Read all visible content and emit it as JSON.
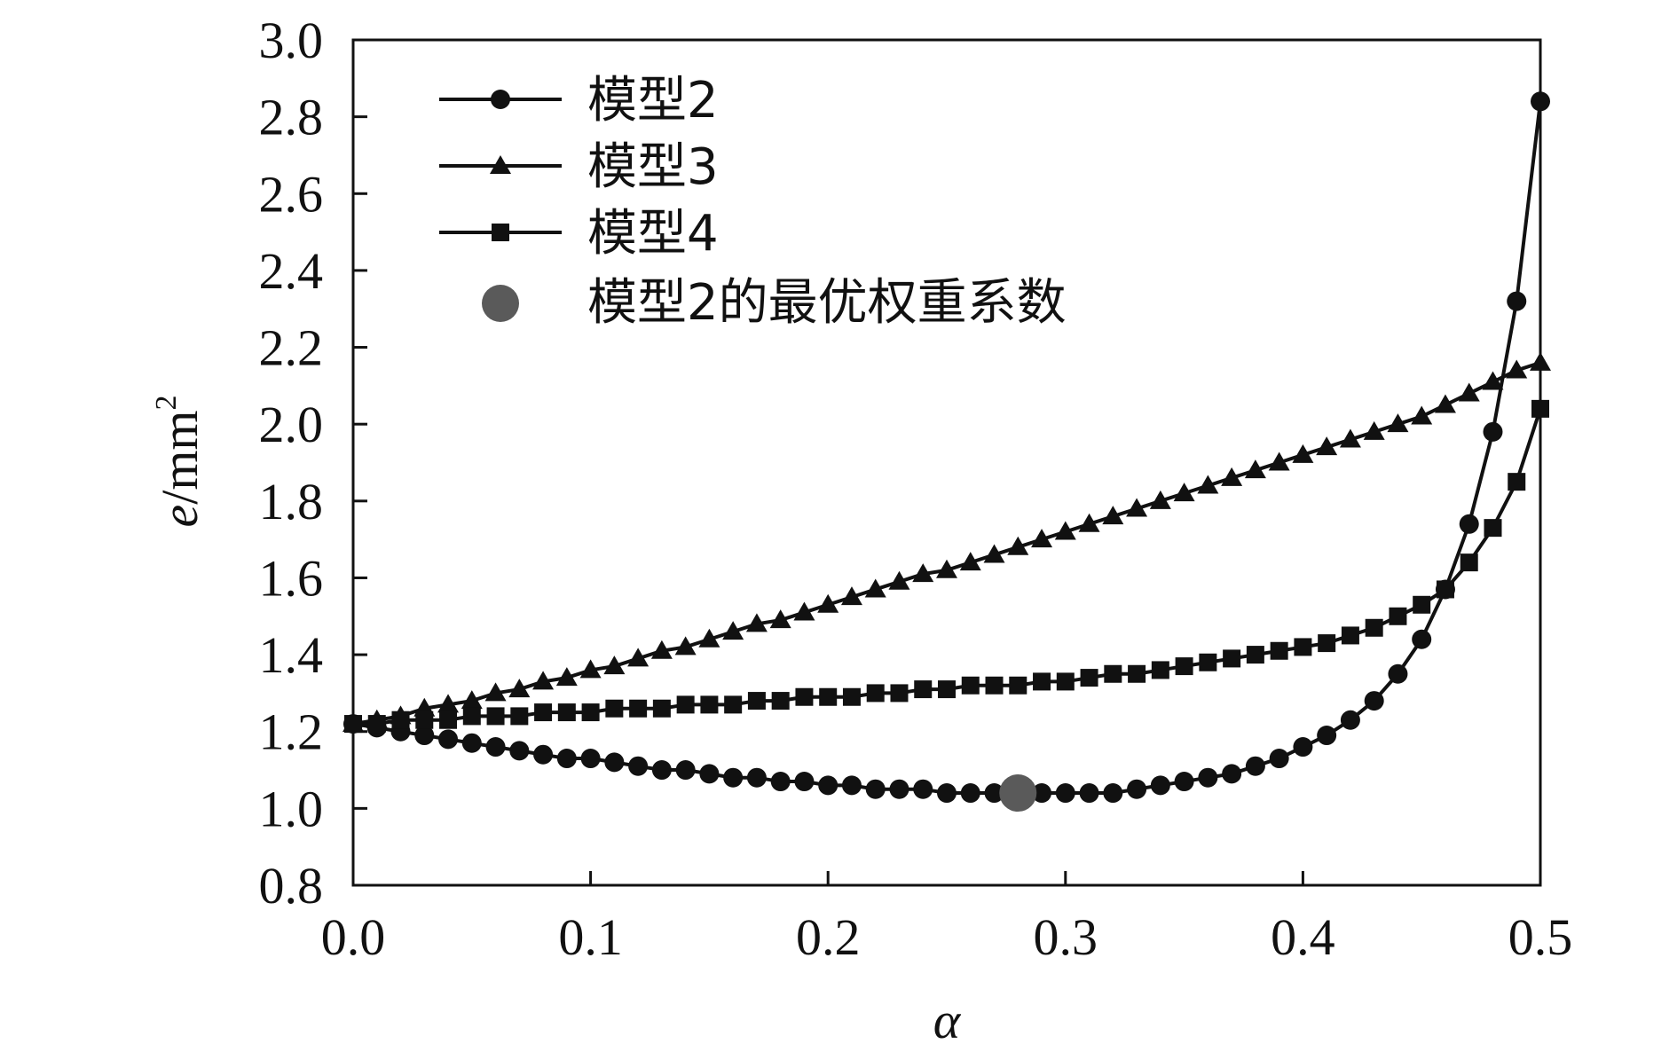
{
  "chart_data": {
    "type": "line",
    "xlabel": "α",
    "ylabel_italic": "e",
    "ylabel_unit": "/mm",
    "ylabel_sup": "2",
    "xlim": [
      0.0,
      0.5
    ],
    "ylim": [
      0.8,
      3.0
    ],
    "x_ticks": [
      "0.0",
      "0.1",
      "0.2",
      "0.3",
      "0.4",
      "0.5"
    ],
    "y_ticks": [
      "0.8",
      "1.0",
      "1.2",
      "1.4",
      "1.6",
      "1.8",
      "2.0",
      "2.2",
      "2.4",
      "2.6",
      "2.8",
      "3.0"
    ],
    "grid": false,
    "legend_position": "top-left",
    "x": [
      0.0,
      0.01,
      0.02,
      0.03,
      0.04,
      0.05,
      0.06,
      0.07,
      0.08,
      0.09,
      0.1,
      0.11,
      0.12,
      0.13,
      0.14,
      0.15,
      0.16,
      0.17,
      0.18,
      0.19,
      0.2,
      0.21,
      0.22,
      0.23,
      0.24,
      0.25,
      0.26,
      0.27,
      0.28,
      0.29,
      0.3,
      0.31,
      0.32,
      0.33,
      0.34,
      0.35,
      0.36,
      0.37,
      0.38,
      0.39,
      0.4,
      0.41,
      0.42,
      0.43,
      0.44,
      0.45,
      0.46,
      0.47,
      0.48,
      0.49,
      0.5
    ],
    "series": [
      {
        "name": "模型2",
        "marker": "circle",
        "color": "#111111",
        "values": [
          1.22,
          1.21,
          1.2,
          1.19,
          1.18,
          1.17,
          1.16,
          1.15,
          1.14,
          1.13,
          1.13,
          1.12,
          1.11,
          1.1,
          1.1,
          1.09,
          1.08,
          1.08,
          1.07,
          1.07,
          1.06,
          1.06,
          1.05,
          1.05,
          1.05,
          1.04,
          1.04,
          1.04,
          1.04,
          1.04,
          1.04,
          1.04,
          1.04,
          1.05,
          1.06,
          1.07,
          1.08,
          1.09,
          1.11,
          1.13,
          1.16,
          1.19,
          1.23,
          1.28,
          1.35,
          1.44,
          1.57,
          1.74,
          1.98,
          2.32,
          2.84
        ]
      },
      {
        "name": "模型3",
        "marker": "triangle",
        "color": "#111111",
        "values": [
          1.22,
          1.23,
          1.24,
          1.26,
          1.27,
          1.28,
          1.3,
          1.31,
          1.33,
          1.34,
          1.36,
          1.37,
          1.39,
          1.41,
          1.42,
          1.44,
          1.46,
          1.48,
          1.49,
          1.51,
          1.53,
          1.55,
          1.57,
          1.59,
          1.61,
          1.62,
          1.64,
          1.66,
          1.68,
          1.7,
          1.72,
          1.74,
          1.76,
          1.78,
          1.8,
          1.82,
          1.84,
          1.86,
          1.88,
          1.9,
          1.92,
          1.94,
          1.96,
          1.98,
          2.0,
          2.02,
          2.05,
          2.08,
          2.11,
          2.14,
          2.16
        ]
      },
      {
        "name": "模型4",
        "marker": "square",
        "color": "#111111",
        "values": [
          1.22,
          1.22,
          1.23,
          1.23,
          1.23,
          1.24,
          1.24,
          1.24,
          1.25,
          1.25,
          1.25,
          1.26,
          1.26,
          1.26,
          1.27,
          1.27,
          1.27,
          1.28,
          1.28,
          1.29,
          1.29,
          1.29,
          1.3,
          1.3,
          1.31,
          1.31,
          1.32,
          1.32,
          1.32,
          1.33,
          1.33,
          1.34,
          1.35,
          1.35,
          1.36,
          1.37,
          1.38,
          1.39,
          1.4,
          1.41,
          1.42,
          1.43,
          1.45,
          1.47,
          1.5,
          1.53,
          1.57,
          1.64,
          1.73,
          1.85,
          2.04
        ]
      }
    ],
    "highlight": {
      "name": "模型2的最优权重系数",
      "x": 0.28,
      "y": 1.04,
      "color": "#5a5a5a"
    }
  }
}
